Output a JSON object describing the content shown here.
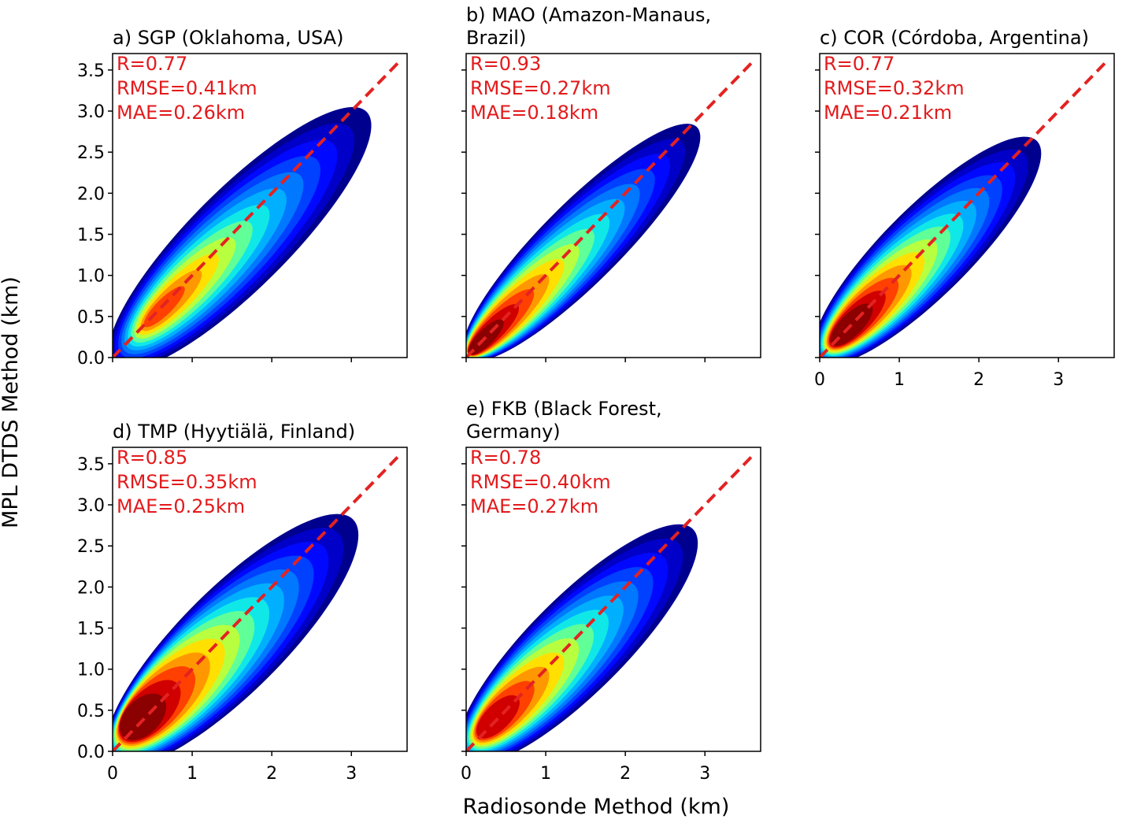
{
  "xlabel": "Radiosonde Method (km)",
  "ylabel": "MPL DTDS Method (km)",
  "chart_data": [
    {
      "type": "density",
      "title": [
        "a) SGP (Oklahoma, USA)"
      ],
      "annotations": [
        "R=0.77",
        "RMSE=0.41km",
        "MAE=0.26km"
      ],
      "xlim": [
        0,
        3.7
      ],
      "ylim": [
        0,
        3.7
      ],
      "xticks": [
        0,
        1,
        2,
        3
      ],
      "xticklabels": false,
      "yticks": [
        {
          "value": 0,
          "label": "0.0"
        },
        0.5,
        {
          "value": 1,
          "label": "1.0"
        },
        1.5,
        {
          "value": 2,
          "label": "2.0"
        },
        2.5,
        {
          "value": 3,
          "label": "3.0"
        },
        3.5
      ],
      "yticklabels": true
    },
    {
      "type": "density",
      "title": [
        "b) MAO (Amazon-Manaus,",
        "Brazil)"
      ],
      "annotations": [
        "R=0.93",
        "RMSE=0.27km",
        "MAE=0.18km"
      ],
      "xlim": [
        0,
        3.7
      ],
      "ylim": [
        0,
        3.7
      ],
      "xticks": [
        0,
        1,
        2,
        3
      ],
      "xticklabels": false,
      "yticks": [
        0,
        0.5,
        1,
        1.5,
        2,
        2.5,
        3,
        3.5
      ],
      "yticklabels": false
    },
    {
      "type": "density",
      "title": [
        "c) COR (Córdoba, Argentina)"
      ],
      "annotations": [
        "R=0.77",
        "RMSE=0.32km",
        "MAE=0.21km"
      ],
      "xlim": [
        0,
        3.7
      ],
      "ylim": [
        0,
        3.7
      ],
      "xticks": [
        0,
        1,
        2,
        3
      ],
      "xticklabels": true,
      "yticks": [
        0,
        0.5,
        1,
        1.5,
        2,
        2.5,
        3,
        3.5
      ],
      "yticklabels": false
    },
    {
      "type": "density",
      "title": [
        "d) TMP (Hyytiälä, Finland)"
      ],
      "annotations": [
        "R=0.85",
        "RMSE=0.35km",
        "MAE=0.25km"
      ],
      "xlim": [
        0,
        3.7
      ],
      "ylim": [
        0,
        3.7
      ],
      "xticks": [
        0,
        1,
        2,
        3
      ],
      "xticklabels": true,
      "yticks": [
        {
          "value": 0,
          "label": "0.0"
        },
        0.5,
        {
          "value": 1,
          "label": "1.0"
        },
        1.5,
        {
          "value": 2,
          "label": "2.0"
        },
        2.5,
        {
          "value": 3,
          "label": "3.0"
        },
        3.5
      ],
      "yticklabels": true
    },
    {
      "type": "density",
      "title": [
        "e) FKB (Black Forest,",
        "Germany)"
      ],
      "annotations": [
        "R=0.78",
        "RMSE=0.40km",
        "MAE=0.27km"
      ],
      "xlim": [
        0,
        3.7
      ],
      "ylim": [
        0,
        3.7
      ],
      "xticks": [
        0,
        1,
        2,
        3
      ],
      "xticklabels": true,
      "yticks": [
        0,
        0.5,
        1,
        1.5,
        2,
        2.5,
        3,
        3.5
      ],
      "yticklabels": false
    }
  ]
}
